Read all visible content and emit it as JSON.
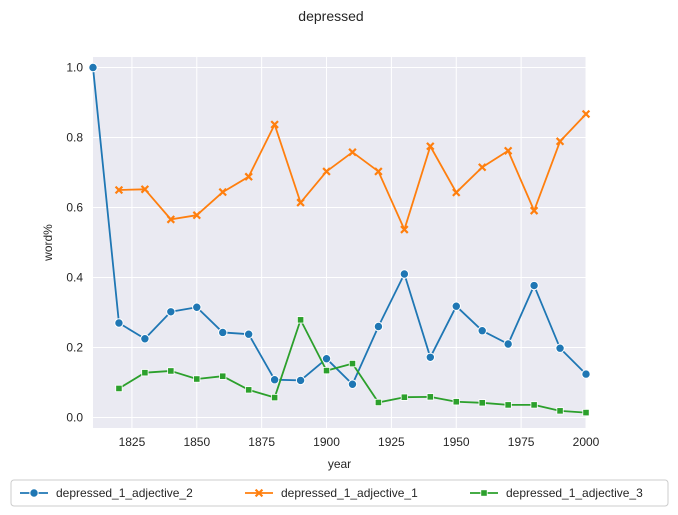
{
  "chart_data": {
    "type": "line",
    "title": "depressed",
    "xlabel": "year",
    "ylabel": "word%",
    "xlim": [
      1810,
      2000
    ],
    "ylim": [
      -0.03,
      1.03
    ],
    "xticks": [
      1825,
      1850,
      1875,
      1900,
      1925,
      1950,
      1975,
      2000
    ],
    "yticks": [
      0.0,
      0.2,
      0.4,
      0.6,
      0.8,
      1.0
    ],
    "xtick_labels": [
      "1825",
      "1850",
      "1875",
      "1900",
      "1925",
      "1950",
      "1975",
      "2000"
    ],
    "ytick_labels": [
      "0.0",
      "0.2",
      "0.4",
      "0.6",
      "0.8",
      "1.0"
    ],
    "grid": true,
    "legend_position": "bottom",
    "series": [
      {
        "name": "depressed_1_adjective_2",
        "color": "#1f77b4",
        "marker": "circle",
        "x": [
          1810,
          1820,
          1830,
          1840,
          1850,
          1860,
          1870,
          1880,
          1890,
          1900,
          1910,
          1920,
          1930,
          1940,
          1950,
          1960,
          1970,
          1980,
          1990,
          2000
        ],
        "y": [
          1.0,
          0.27,
          0.225,
          0.302,
          0.315,
          0.243,
          0.238,
          0.108,
          0.106,
          0.168,
          0.095,
          0.26,
          0.41,
          0.172,
          0.318,
          0.248,
          0.21,
          0.377,
          0.198,
          0.124
        ]
      },
      {
        "name": "depressed_1_adjective_1",
        "color": "#ff7f0e",
        "marker": "x",
        "x": [
          1820,
          1830,
          1840,
          1850,
          1860,
          1870,
          1880,
          1890,
          1900,
          1910,
          1920,
          1930,
          1940,
          1950,
          1960,
          1970,
          1980,
          1990,
          2000
        ],
        "y": [
          0.65,
          0.652,
          0.566,
          0.578,
          0.644,
          0.688,
          0.837,
          0.614,
          0.703,
          0.758,
          0.703,
          0.537,
          0.775,
          0.643,
          0.715,
          0.762,
          0.591,
          0.789,
          0.867
        ]
      },
      {
        "name": "depressed_1_adjective_3",
        "color": "#2ca02c",
        "marker": "square",
        "x": [
          1820,
          1830,
          1840,
          1850,
          1860,
          1870,
          1880,
          1890,
          1900,
          1910,
          1920,
          1930,
          1940,
          1950,
          1960,
          1970,
          1980,
          1990,
          2000
        ],
        "y": [
          0.083,
          0.128,
          0.133,
          0.11,
          0.118,
          0.079,
          0.057,
          0.279,
          0.134,
          0.154,
          0.043,
          0.058,
          0.059,
          0.045,
          0.042,
          0.036,
          0.036,
          0.019,
          0.014
        ]
      }
    ]
  }
}
